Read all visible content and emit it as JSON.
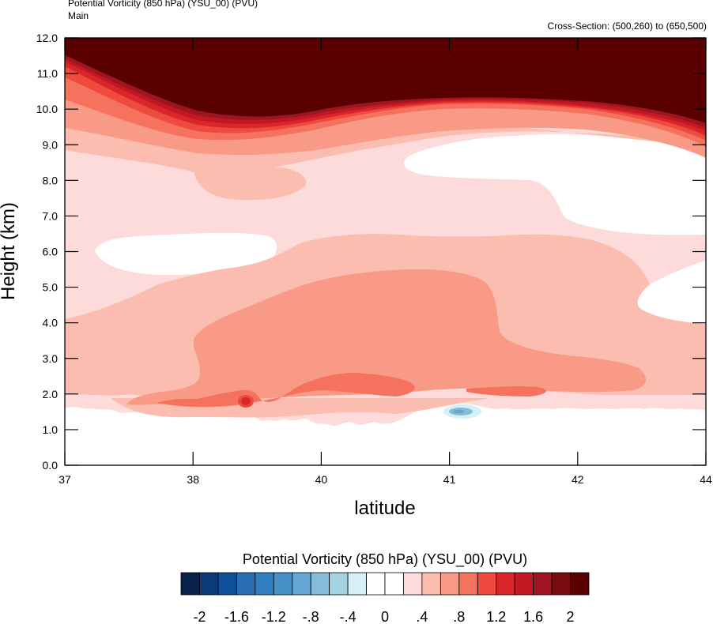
{
  "header": {
    "title_line1": "Potential Vorticity (850 hPa) (YSU_00)   (PVU)",
    "title_line2": "Main",
    "cross_section": "Cross-Section: (500,260) to (650,500)"
  },
  "chart_data": {
    "type": "heatmap",
    "title": "Potential Vorticity (850 hPa) (YSU_00)   (PVU)",
    "xlabel": "latitude",
    "ylabel": "Height (km)",
    "xticks": [
      "37",
      "38",
      "40",
      "41",
      "42",
      "44"
    ],
    "yticks": [
      "0.0",
      "1.0",
      "2.0",
      "3.0",
      "4.0",
      "5.0",
      "6.0",
      "7.0",
      "8.0",
      "9.0",
      "10.0",
      "11.0",
      "12.0"
    ],
    "ylim": [
      0,
      12
    ],
    "colorbar": {
      "title": "Potential Vorticity (850 hPa) (YSU_00)  (PVU)",
      "labels": [
        "-2",
        "-1.6",
        "-1.2",
        "-.8",
        "-.4",
        "0",
        ".4",
        ".8",
        "1.2",
        "1.6",
        "2"
      ],
      "levels": [
        -2,
        -1.8,
        -1.6,
        -1.4,
        -1.2,
        -1,
        -0.8,
        -0.6,
        -0.4,
        -0.2,
        0,
        0.2,
        0.4,
        0.6,
        0.8,
        1,
        1.2,
        1.4,
        1.6,
        1.8,
        2
      ],
      "colors": [
        "#08214a",
        "#0b3a78",
        "#0d4f99",
        "#2b6fb3",
        "#2f7fc1",
        "#4591c8",
        "#66a6d2",
        "#85bdd9",
        "#a3d3e0",
        "#d6f0f7",
        "#ffffff",
        "#ffffff",
        "#fddbdb",
        "#fbbdb0",
        "#f99a86",
        "#f5735e",
        "#ee4a3e",
        "#d9262b",
        "#c11824",
        "#9c1520",
        "#7a0c0f",
        "#5b0000"
      ]
    },
    "fields": {
      "surface_layer_max_pvu": 0.2,
      "low_level_max_pvu": 1.2,
      "mid_level_max_pvu": 0.8,
      "upper_level_min_pvu": 2,
      "negative_minimum_pvu": -0.4
    }
  }
}
